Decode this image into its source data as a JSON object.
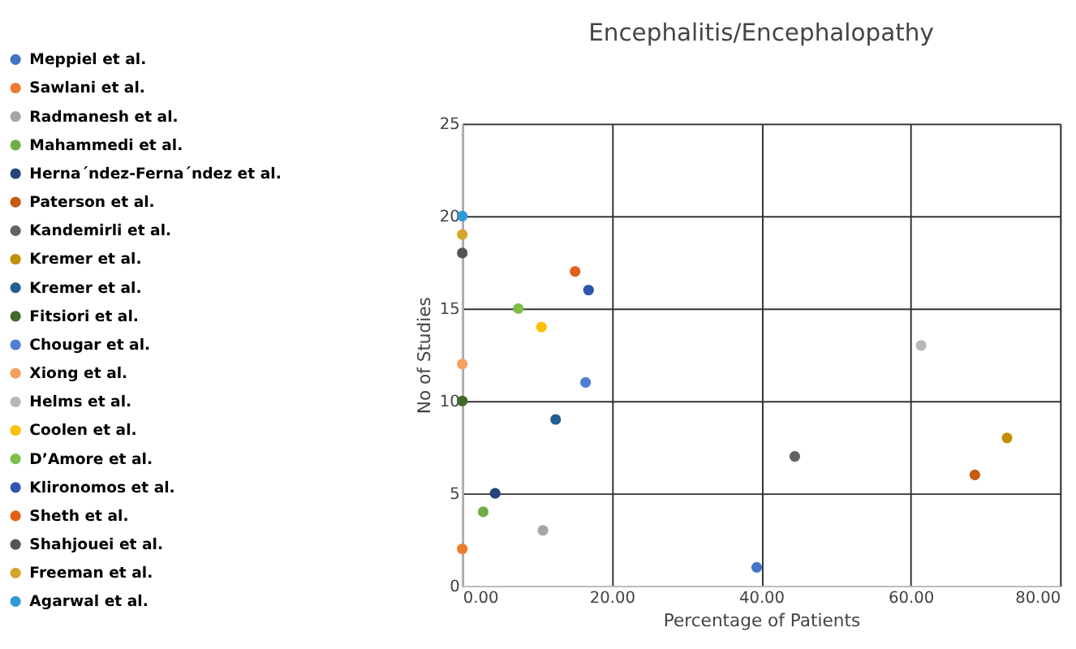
{
  "chart_data": {
    "type": "scatter",
    "title": "Encephalitis/Encephalopathy",
    "xlabel": "Percentage of Patients",
    "ylabel": "No of Studies",
    "xlim": [
      0,
      80
    ],
    "ylim": [
      0,
      25
    ],
    "xticks": [
      {
        "value": 0,
        "label": "0.00"
      },
      {
        "value": 20,
        "label": "20.00"
      },
      {
        "value": 40,
        "label": "40.00"
      },
      {
        "value": 60,
        "label": "60.00"
      },
      {
        "value": 80,
        "label": "80.00"
      }
    ],
    "yticks": [
      0,
      5,
      10,
      15,
      20,
      25
    ],
    "grid": true,
    "legend": "left",
    "marker": "circle",
    "series": [
      {
        "name": "Meppiel et al.",
        "color": "#4472c4",
        "x": [
          39.4
        ],
        "values": [
          1
        ]
      },
      {
        "name": "Sawlani et al.",
        "color": "#ed7d31",
        "x": [
          0
        ],
        "values": [
          2
        ]
      },
      {
        "name": "Radmanesh et al.",
        "color": "#a5a5a5",
        "x": [
          10.8
        ],
        "values": [
          3
        ]
      },
      {
        "name": "Mahammedi et al.",
        "color": "#70ad47",
        "x": [
          2.8
        ],
        "values": [
          4
        ]
      },
      {
        "name": "Herna´ndez-Ferna´ndez et al.",
        "color": "#264478",
        "x": [
          4.4
        ],
        "values": [
          5
        ]
      },
      {
        "name": "Paterson et al.",
        "color": "#c55a11",
        "x": [
          68.6
        ],
        "values": [
          6
        ]
      },
      {
        "name": "Kandemirli et al.",
        "color": "#636363",
        "x": [
          44.5
        ],
        "values": [
          7
        ]
      },
      {
        "name": "Kremer et al.",
        "color": "#bf9000",
        "x": [
          72.9
        ],
        "values": [
          8
        ]
      },
      {
        "name": "Kremer et al.",
        "color": "#255e91",
        "x": [
          12.5
        ],
        "values": [
          9
        ]
      },
      {
        "name": "Fitsiori et al.",
        "color": "#43682b",
        "x": [
          0
        ],
        "values": [
          10
        ]
      },
      {
        "name": "Chougar et al.",
        "color": "#4f7fd4",
        "x": [
          16.5
        ],
        "values": [
          11
        ]
      },
      {
        "name": "Xiong et al.",
        "color": "#f4a062",
        "x": [
          0
        ],
        "values": [
          12
        ]
      },
      {
        "name": "Helms et al.",
        "color": "#b7b7b7",
        "x": [
          61.4
        ],
        "values": [
          13
        ]
      },
      {
        "name": "Coolen et al.",
        "color": "#ffc000",
        "x": [
          10.6
        ],
        "values": [
          14
        ]
      },
      {
        "name": "D’Amore et al.",
        "color": "#7cc04a",
        "x": [
          7.5
        ],
        "values": [
          15
        ]
      },
      {
        "name": "Klironomos et al.",
        "color": "#2f55b0",
        "x": [
          16.9
        ],
        "values": [
          16
        ]
      },
      {
        "name": "Sheth et al.",
        "color": "#e0601a",
        "x": [
          15.1
        ],
        "values": [
          17
        ]
      },
      {
        "name": "Shahjouei et al.",
        "color": "#555555",
        "x": [
          0
        ],
        "values": [
          18
        ]
      },
      {
        "name": "Freeman et al.",
        "color": "#d4a52a",
        "x": [
          0
        ],
        "values": [
          19
        ]
      },
      {
        "name": "Agarwal et al.",
        "color": "#2e9ad6",
        "x": [
          0
        ],
        "values": [
          20
        ]
      }
    ]
  }
}
